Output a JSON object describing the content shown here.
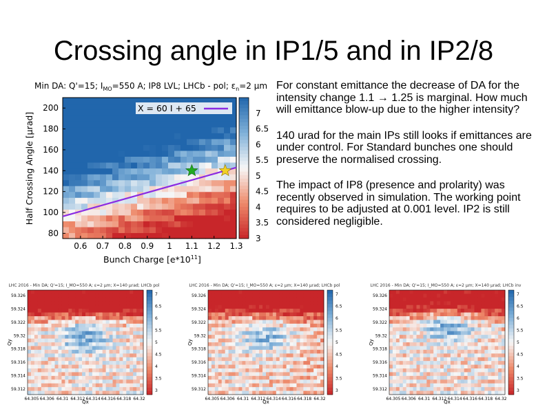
{
  "title": "Crossing angle in IP1/5 and in IP2/8",
  "notes": [
    "For constant emittance the decrease of DA for the intensity change 1.1 → 1.25 is marginal. How much will emittance blow-up due to the higher intensity?",
    "140 urad for the main IPs still looks if emittances are under control. For Standard bunches one should preserve the normalised crossing.",
    "The impact of IP8 (presence and prolarity) was recently observed in simulation. The working point requires to be adjusted at 0.001 level. IP2 is still considered negligible."
  ],
  "colors": {
    "high": "#2166ac",
    "mid": "#f7f7f7",
    "low": "#c8262a",
    "fit_line": "#8a2be2",
    "star_green": "#22aa22",
    "star_yellow": "#f2d024"
  },
  "chart_data": [
    {
      "type": "heatmap",
      "title": "Min DA: Q'=15; I_MO=550 A; IP8 LVL; LHCb - pol; εn=2 μm",
      "title_parts": {
        "a": "Min DA: Q'=15; I",
        "a_sub": "MO",
        "b": "=550 A; IP8 LVL; LHCb - pol; ε",
        "b_sub": "n",
        "c": "=2 μm"
      },
      "xlabel": "Bunch Charge [e*10",
      "xlabel_sup": "11",
      "xlabel_end": "]",
      "ylabel": "Half Crossing Angle [μrad]",
      "xlim": [
        0.52,
        1.3
      ],
      "ylim": [
        75,
        210
      ],
      "xticks": [
        "0.6",
        "0.7",
        "0.8",
        "0.9",
        "1",
        "1.1",
        "1.2",
        "1.3"
      ],
      "yticks": [
        "80",
        "100",
        "120",
        "140",
        "160",
        "180",
        "200"
      ],
      "colorbar": {
        "min": 3,
        "max": 7.5,
        "ticks": [
          "3",
          "3.5",
          "4",
          "4.5",
          "5",
          "5.5",
          "6",
          "6.5",
          "7"
        ]
      },
      "fit_line": {
        "label": "X = 60 I + 65",
        "slope": 60,
        "intercept": 65
      },
      "markers": [
        {
          "x": 1.1,
          "y": 140,
          "color": "green"
        },
        {
          "x": 1.25,
          "y": 140,
          "color": "yellow"
        }
      ]
    },
    {
      "type": "heatmap",
      "title": "LHC 2016 - Min DA; Q'=15; I_MO=550 A; ε=2 μm; X=140 μrad; LHCb pol",
      "xlabel": "Qx",
      "ylabel": "Qy",
      "xticks": [
        "64.305",
        "64.306",
        "64.31",
        "64.312",
        "64.314",
        "64.316",
        "64.318",
        "64.32"
      ],
      "yticks": [
        "59.326",
        "59.324",
        "59.322",
        "59.32",
        "59.318",
        "59.316",
        "59.314",
        "59.312"
      ],
      "colorbar": {
        "min": 3,
        "max": 7.5,
        "ticks": [
          "7",
          "6.5",
          "6",
          "5.5",
          "5",
          "4.5",
          "4",
          "3.5",
          "3"
        ]
      }
    },
    {
      "type": "heatmap",
      "title": "LHC 2016 - Min DA; Q'=15; I_MO=550 A; ε=2 μm; X=140 μrad; LHCb pol",
      "xlabel": "Qx",
      "ylabel": "Qy",
      "xticks": [
        "64.305",
        "64.306",
        "64.31",
        "64.312",
        "64.314",
        "64.316",
        "64.318",
        "64.32"
      ],
      "yticks": [
        "59.326",
        "59.324",
        "59.322",
        "59.32",
        "59.318",
        "59.316",
        "59.314",
        "59.312"
      ],
      "colorbar": {
        "min": 3,
        "max": 7.5,
        "ticks": [
          "7",
          "6.5",
          "6",
          "5.5",
          "5",
          "4.5",
          "4",
          "3.5",
          "3"
        ]
      }
    },
    {
      "type": "heatmap",
      "title": "LHC 2016 - Min DA; Q'=15; I_MO=550 A; ε=2 μm; X=140 μrad; LHCb inv",
      "xlabel": "Qx",
      "ylabel": "Qy",
      "xticks": [
        "64.305",
        "64.306",
        "64.31",
        "64.312",
        "64.314",
        "64.316",
        "64.318",
        "64.32"
      ],
      "yticks": [
        "59.326",
        "59.324",
        "59.322",
        "59.32",
        "59.318",
        "59.316",
        "59.314",
        "59.312"
      ],
      "colorbar": {
        "min": 3,
        "max": 7.5,
        "ticks": [
          "7",
          "6.5",
          "6",
          "5.5",
          "5",
          "4.5",
          "4",
          "3.5",
          "3"
        ]
      }
    }
  ]
}
